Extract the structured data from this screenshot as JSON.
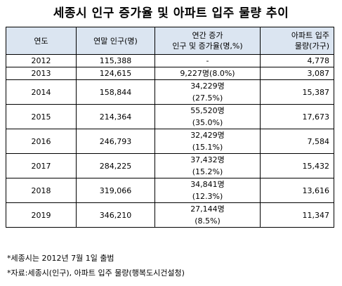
{
  "title": "세종시 인구 증가율 및 아파트 입주 물량 추이",
  "table": {
    "headers": {
      "year": "연도",
      "population": "연말 인구(명)",
      "increase_line1": "연간 증가",
      "increase_line2": "인구 및 증가율(명,%)",
      "apartment_line1": "아파트 입주",
      "apartment_line2": "물량(가구)"
    },
    "rows": [
      {
        "year": "2012",
        "population": "115,388",
        "increase": "-",
        "rate": "",
        "apartments": "4,778"
      },
      {
        "year": "2013",
        "population": "124,615",
        "increase": "9,227명(8.0%)",
        "rate": "",
        "apartments": "3,087"
      },
      {
        "year": "2014",
        "population": "158,844",
        "increase": "34,229명",
        "rate": "(27.5%)",
        "apartments": "15,387"
      },
      {
        "year": "2015",
        "population": "214,364",
        "increase": "55,520명",
        "rate": "(35.0%)",
        "apartments": "17,673"
      },
      {
        "year": "2016",
        "population": "246,793",
        "increase": "32,429명",
        "rate": "(15.1%)",
        "apartments": "7,584"
      },
      {
        "year": "2017",
        "population": "284,225",
        "increase": "37,432명",
        "rate": "(15.2%)",
        "apartments": "15,432"
      },
      {
        "year": "2018",
        "population": "319,066",
        "increase": "34,841명",
        "rate": "(12.3%)",
        "apartments": "13,616"
      },
      {
        "year": "2019",
        "population": "346,210",
        "increase": "27,144명",
        "rate": "(8.5%)",
        "apartments": "11,347"
      }
    ]
  },
  "notes": [
    "*세종시는 2012년 7월 1일 출범",
    "*자료:세종시(인구), 아파트 입주 물량(행복도시건설청)"
  ]
}
